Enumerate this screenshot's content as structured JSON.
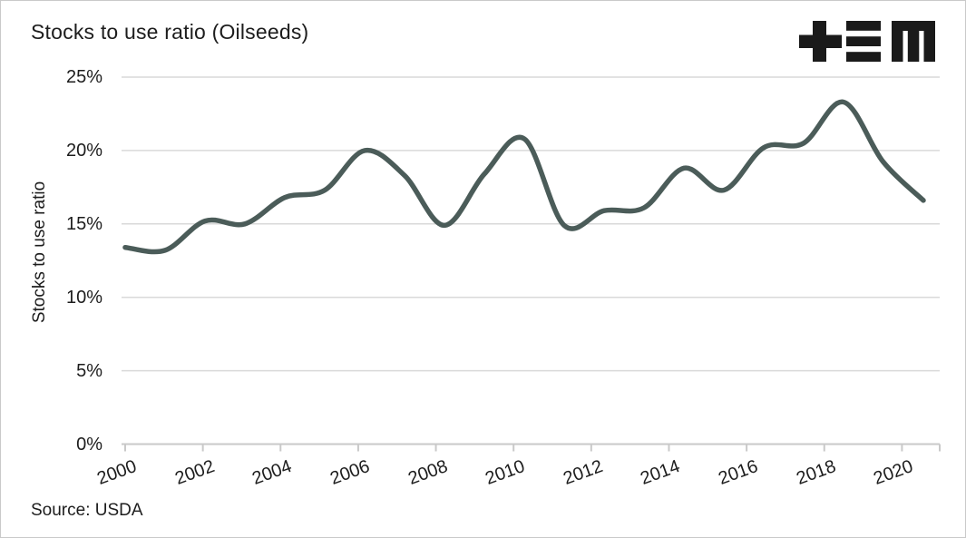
{
  "header": {
    "title": "Stocks to use ratio (Oilseeds)"
  },
  "footer": {
    "source": "Source: USDA"
  },
  "logo": {
    "glyphs": [
      "plus",
      "triple-bar",
      "block-m"
    ],
    "color": "#1a1a1a"
  },
  "colors": {
    "line": "#4b5c59",
    "grid": "#d9d9d9",
    "axis": "#c9c9c9",
    "tick": "#c9c9c9",
    "text": "#1d1d1d",
    "background": "#ffffff",
    "border": "#c9c9c9"
  },
  "chart_data": {
    "type": "line",
    "title": "Stocks to use ratio (Oilseeds)",
    "xlabel": "",
    "ylabel": "Stocks to use ratio",
    "unit": "%",
    "grid": "horizontal",
    "legend": "none",
    "ylim": [
      0,
      25
    ],
    "yticks": [
      0,
      5,
      10,
      15,
      20,
      25
    ],
    "ytick_labels": [
      "0%",
      "5%",
      "10%",
      "15%",
      "20%",
      "25%"
    ],
    "xticks": [
      2000,
      2002,
      2004,
      2006,
      2008,
      2010,
      2012,
      2014,
      2016,
      2018,
      2020
    ],
    "x": [
      2000,
      2001,
      2002,
      2003,
      2004,
      2005,
      2006,
      2007,
      2008,
      2009,
      2010,
      2011,
      2012,
      2013,
      2014,
      2015,
      2016,
      2017,
      2018,
      2019,
      2020
    ],
    "series": [
      {
        "name": "Stocks to use ratio (Oilseeds)",
        "values": [
          13.4,
          13.2,
          15.2,
          15.0,
          16.8,
          17.3,
          20.0,
          18.3,
          14.9,
          18.4,
          20.8,
          14.9,
          15.9,
          16.1,
          18.8,
          17.3,
          20.2,
          20.5,
          23.3,
          19.2,
          16.6
        ]
      }
    ],
    "source": "Source: USDA"
  }
}
